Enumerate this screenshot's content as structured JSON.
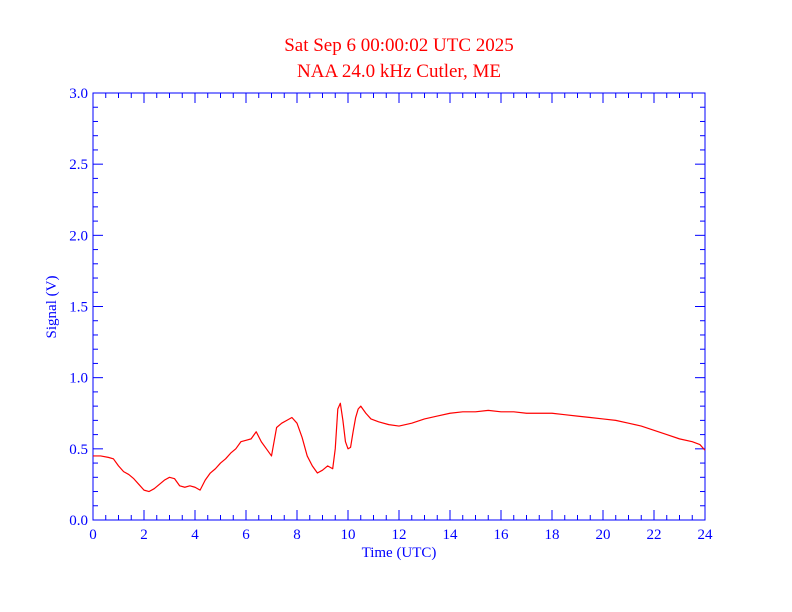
{
  "colors": {
    "title": "#ff0000",
    "axes": "#0000ff",
    "series": "#ff0000",
    "background": "#ffffff"
  },
  "chart_data": {
    "type": "line",
    "title": "Sat Sep 6 00:00:02 UTC 2025",
    "subtitle": "NAA 24.0 kHz Cutler, ME",
    "xlabel": "Time (UTC)",
    "ylabel": "Signal (V)",
    "xlim": [
      0,
      24
    ],
    "ylim": [
      0.0,
      3.0
    ],
    "xticks": [
      "0",
      "2",
      "4",
      "6",
      "8",
      "10",
      "12",
      "14",
      "16",
      "18",
      "20",
      "22",
      "24"
    ],
    "yticks": [
      "0.0",
      "0.5",
      "1.0",
      "1.5",
      "2.0",
      "2.5",
      "3.0"
    ],
    "grid": false,
    "series": [
      {
        "x": [
          0,
          0.3,
          0.6,
          0.8,
          1.0,
          1.2,
          1.4,
          1.6,
          1.8,
          2.0,
          2.2,
          2.4,
          2.6,
          2.8,
          3.0,
          3.2,
          3.4,
          3.6,
          3.8,
          4.0,
          4.2,
          4.4,
          4.6,
          4.8,
          5.0,
          5.2,
          5.4,
          5.6,
          5.8,
          6.0,
          6.2,
          6.4,
          6.6,
          6.8,
          7.0,
          7.2,
          7.4,
          7.6,
          7.8,
          8.0,
          8.2,
          8.4,
          8.6,
          8.8,
          9.0,
          9.2,
          9.4,
          9.5,
          9.6,
          9.7,
          9.8,
          9.9,
          10.0,
          10.1,
          10.2,
          10.3,
          10.4,
          10.5,
          10.7,
          10.9,
          11.2,
          11.6,
          12.0,
          12.5,
          13.0,
          13.5,
          14.0,
          14.5,
          15.0,
          15.5,
          16.0,
          16.5,
          17.0,
          17.5,
          18.0,
          18.5,
          19.0,
          19.5,
          20.0,
          20.5,
          21.0,
          21.5,
          22.0,
          22.5,
          23.0,
          23.5,
          23.8,
          24.0
        ],
        "values": [
          0.45,
          0.45,
          0.44,
          0.43,
          0.38,
          0.34,
          0.32,
          0.29,
          0.25,
          0.21,
          0.2,
          0.22,
          0.25,
          0.28,
          0.3,
          0.29,
          0.24,
          0.23,
          0.24,
          0.23,
          0.21,
          0.28,
          0.33,
          0.36,
          0.4,
          0.43,
          0.47,
          0.5,
          0.55,
          0.56,
          0.57,
          0.62,
          0.55,
          0.5,
          0.45,
          0.65,
          0.68,
          0.7,
          0.72,
          0.68,
          0.58,
          0.45,
          0.38,
          0.33,
          0.35,
          0.38,
          0.36,
          0.5,
          0.78,
          0.82,
          0.7,
          0.55,
          0.5,
          0.51,
          0.62,
          0.72,
          0.78,
          0.8,
          0.75,
          0.71,
          0.69,
          0.67,
          0.66,
          0.68,
          0.71,
          0.73,
          0.75,
          0.76,
          0.76,
          0.77,
          0.76,
          0.76,
          0.75,
          0.75,
          0.75,
          0.74,
          0.73,
          0.72,
          0.71,
          0.7,
          0.68,
          0.66,
          0.63,
          0.6,
          0.57,
          0.55,
          0.53,
          0.49
        ]
      }
    ]
  }
}
